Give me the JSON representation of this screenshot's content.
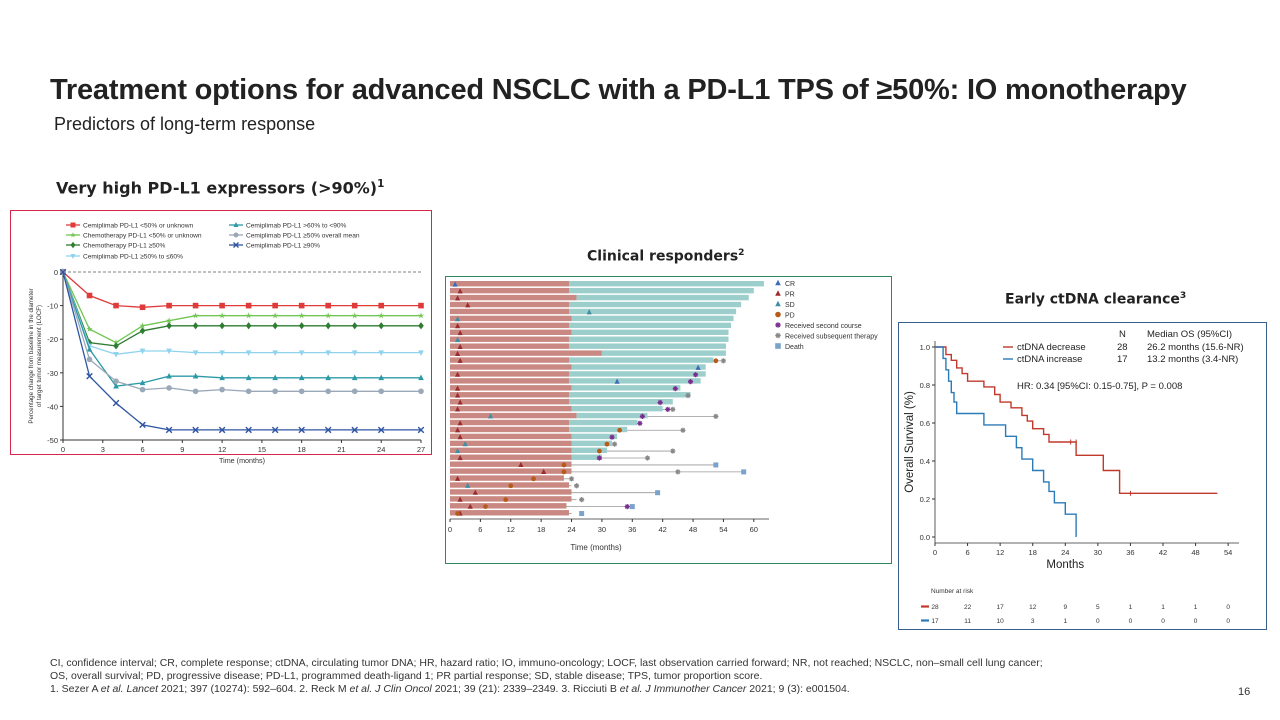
{
  "slide": {
    "title": "Treatment options for advanced NSCLC with a PD-L1 TPS of ≥50%: IO monotherapy",
    "subtitle": "Predictors of long-term response",
    "page_number": "16"
  },
  "sections": {
    "s1": {
      "label": "Very high PD-L1 expressors (>90%)",
      "ref": "1"
    },
    "s2": {
      "label": "Clinical responders",
      "ref": "2"
    },
    "s3": {
      "label": "Early ctDNA clearance",
      "ref": "3"
    }
  },
  "footnotes": {
    "line1": "CI, confidence interval; CR, complete response; ctDNA, circulating tumor DNA; HR, hazard ratio; IO, immuno-oncology; LOCF, last observation carried forward; NR, not reached; NSCLC, non–small cell lung cancer;",
    "line2": "OS, overall survival; PD, progressive disease; PD-L1, programmed death-ligand 1; PR partial response; SD, stable disease; TPS, tumor proportion score.",
    "ref1_pre": "1. Sezer A ",
    "ref1_it": "et al. Lancet",
    "ref1_post": " 2021; 397 (10274): 592–604. 2. Reck M ",
    "ref2_it": "et al. J Clin Oncol",
    "ref2_post": " 2021; 39 (21): 2339–2349. 3. Ricciuti B ",
    "ref3_it": "et al. J Immunother Cancer",
    "ref3_post": " 2021; 9 (3): e001504."
  },
  "chart_data": [
    {
      "type": "line",
      "title": "",
      "xlabel": "Time (months)",
      "ylabel": "Percentage change from baseline in the diameter of target tumor measurement (LOCF)",
      "xlim": [
        0,
        27
      ],
      "ylim": [
        -50,
        0
      ],
      "xticks": [
        0,
        3,
        6,
        9,
        12,
        15,
        18,
        21,
        24,
        27
      ],
      "yticks": [
        0,
        -10,
        -20,
        -30,
        -40,
        -50
      ],
      "x": [
        0,
        2,
        4,
        6,
        8,
        10,
        12,
        14,
        16,
        18,
        20,
        22,
        24,
        27
      ],
      "series": [
        {
          "name": "Cemiplimab PD-L1 <50% or unknown",
          "color": "#e03b3b",
          "marker": "square",
          "values": [
            0,
            -7,
            -10,
            -10.5,
            -10,
            -10,
            -10,
            -10,
            -10,
            -10,
            -10,
            -10,
            -10,
            -10
          ]
        },
        {
          "name": "Chemotherapy PD-L1 <50% or unknown",
          "color": "#73c655",
          "marker": "star",
          "values": [
            0,
            -17,
            -21,
            -16,
            -14.5,
            -13,
            -13,
            -13,
            -13,
            -13,
            -13,
            -13,
            -13,
            -13
          ]
        },
        {
          "name": "Chemotherapy PD-L1 ≥50%",
          "color": "#2e7d32",
          "marker": "diamond",
          "values": [
            0,
            -21,
            -22,
            -17.5,
            -16,
            -16,
            -16,
            -16,
            -16,
            -16,
            -16,
            -16,
            -16,
            -16
          ]
        },
        {
          "name": "Cemiplimab PD-L1 ≥50% to ≤60%",
          "color": "#8fd3ef",
          "marker": "tri-down",
          "values": [
            0,
            -22,
            -24.5,
            -23.5,
            -23.5,
            -24,
            -24,
            -24,
            -24,
            -24,
            -24,
            -24,
            -24,
            -24
          ]
        },
        {
          "name": "Cemiplimab PD-L1 >60% to <90%",
          "color": "#2c9aa6",
          "marker": "tri-up",
          "values": [
            0,
            -23,
            -34,
            -33,
            -31,
            -31,
            -31.5,
            -31.5,
            -31.5,
            -31.5,
            -31.5,
            -31.5,
            -31.5,
            -31.5
          ]
        },
        {
          "name": "Cemiplimab PD-L1 ≥50% overall mean",
          "color": "#9aa8b8",
          "marker": "circle",
          "values": [
            0,
            -26,
            -32.5,
            -35,
            -34.5,
            -35.5,
            -35,
            -35.5,
            -35.5,
            -35.5,
            -35.5,
            -35.5,
            -35.5,
            -35.5
          ]
        },
        {
          "name": "Cemiplimab PD-L1 ≥90%",
          "color": "#2f55a4",
          "marker": "x",
          "values": [
            0,
            -31,
            -39,
            -45.5,
            -47,
            -47,
            -47,
            -47,
            -47,
            -47,
            -47,
            -47,
            -47,
            -47
          ]
        }
      ]
    },
    {
      "type": "bar",
      "orientation": "horizontal",
      "title": "",
      "xlabel": "Time (months)",
      "xlim": [
        0,
        63
      ],
      "xticks": [
        0,
        6,
        12,
        18,
        24,
        30,
        36,
        42,
        48,
        54,
        60
      ],
      "legend": [
        "CR",
        "PR",
        "SD",
        "PD",
        "Received second course",
        "Received subsequent therapy",
        "Death"
      ],
      "colors": {
        "first_course": "#c98982",
        "second_course": "#9ccfcc",
        "CR": "#3b6db5",
        "PR": "#9b2d2d",
        "SD": "#3f8ea3",
        "PD": "#b85a1a",
        "second_course_marker": "#7b2d8e",
        "subsequent_therapy_marker": "#888888",
        "Death": "#7aa3cc"
      },
      "patients": [
        {
          "course1": 23.5,
          "end": 62,
          "resp": "CR",
          "resp_t": 1
        },
        {
          "course1": 23.5,
          "end": 60,
          "resp": "PR",
          "resp_t": 2
        },
        {
          "course1": 25,
          "end": 59,
          "resp": "PR",
          "resp_t": 1.5
        },
        {
          "course1": 23.5,
          "end": 57.5,
          "resp": "PR",
          "resp_t": 3.5
        },
        {
          "course1": 23.5,
          "end": 56.5,
          "resp": "SD",
          "resp_t": 27.5
        },
        {
          "course1": 24,
          "end": 56,
          "resp": "SD",
          "resp_t": 1.5
        },
        {
          "course1": 23.5,
          "end": 55.5,
          "resp": "PR",
          "resp_t": 1.5
        },
        {
          "course1": 24,
          "end": 55,
          "resp": "PR",
          "resp_t": 2
        },
        {
          "course1": 23.5,
          "end": 55,
          "resp": "SD",
          "resp_t": 1.5
        },
        {
          "course1": 23.5,
          "end": 54.5,
          "resp": "PR",
          "resp_t": 2
        },
        {
          "course1": 30,
          "end": 54.5,
          "resp": "PR",
          "resp_t": 1.5
        },
        {
          "course1": 23.5,
          "end": 52,
          "resp": "PR",
          "resp_t": 2,
          "pd": 52.5,
          "subseq": 54
        },
        {
          "course1": 24,
          "end": 50.5,
          "resp": "CR",
          "resp_t": 49
        },
        {
          "course1": 23.5,
          "end": 50.5,
          "resp": "PR",
          "resp_t": 1.5,
          "second": 48.5
        },
        {
          "course1": 23.5,
          "end": 49.5,
          "resp": "CR",
          "resp_t": 33,
          "second": 47.5
        },
        {
          "course1": 24,
          "end": 45.5,
          "resp": "PR",
          "resp_t": 1.5,
          "second": 44.5
        },
        {
          "course1": 23.5,
          "end": 47.5,
          "resp": "PR",
          "resp_t": 1.5,
          "subseq": 47
        },
        {
          "course1": 23.5,
          "end": 44,
          "resp": "PR",
          "resp_t": 2,
          "second": 41.5
        },
        {
          "course1": 24,
          "end": 42,
          "resp": "PR",
          "resp_t": 1.5,
          "second": 43,
          "subseq": 44
        },
        {
          "course1": 25,
          "end": 39,
          "resp": "SD",
          "resp_t": 8,
          "second": 38,
          "subseq": 52.5
        },
        {
          "course1": 23.5,
          "end": 37,
          "resp": "PR",
          "resp_t": 2,
          "second": 37.5
        },
        {
          "course1": 23.5,
          "end": 35,
          "resp": "PR",
          "resp_t": 1.5,
          "pd": 33.5,
          "subseq": 46
        },
        {
          "course1": 24,
          "end": 33,
          "resp": "PR",
          "resp_t": 2,
          "second": 32
        },
        {
          "course1": 24,
          "end": 32,
          "resp": "SD",
          "resp_t": 3,
          "pd": 31,
          "subseq": 32.5
        },
        {
          "course1": 24,
          "end": 31,
          "resp": "SD",
          "resp_t": 1.5,
          "pd": 29.5,
          "subseq": 44
        },
        {
          "course1": 24,
          "end": 30,
          "resp": "PR",
          "resp_t": 2,
          "second": 29.5,
          "subseq": 39
        },
        {
          "course1": 24,
          "end": 52.5,
          "resp": "PR",
          "resp_t": 14,
          "pd": 22.5,
          "death": 52.5
        },
        {
          "course1": 24,
          "end": 58,
          "resp": "PR",
          "resp_t": 18.5,
          "pd": 22.5,
          "subseq": 45,
          "death": 58
        },
        {
          "course1": 22.5,
          "end": 24,
          "resp": "PR",
          "resp_t": 1.5,
          "pd": 16.5,
          "subseq": 24
        },
        {
          "course1": 23.5,
          "end": 24,
          "resp": "SD",
          "resp_t": 3.5,
          "pd": 12,
          "subseq": 25
        },
        {
          "course1": 24,
          "end": 41,
          "resp": "PR",
          "resp_t": 5,
          "death": 41
        },
        {
          "course1": 24,
          "end": 25,
          "resp": "PR",
          "resp_t": 2,
          "pd": 11,
          "subseq": 26
        },
        {
          "course1": 23,
          "end": 36,
          "resp": "PR",
          "resp_t": 4,
          "pd": 7,
          "second": 35,
          "death": 36
        },
        {
          "course1": 23.5,
          "end": 24,
          "resp": "PR",
          "resp_t": 2,
          "pd": 1.5,
          "death": 26
        }
      ]
    },
    {
      "type": "line",
      "subtype": "kaplan-meier",
      "title": "",
      "xlabel": "Months",
      "ylabel": "Overall Survival (%)",
      "xlim": [
        0,
        56
      ],
      "ylim": [
        0,
        1.0
      ],
      "xticks": [
        0,
        6,
        12,
        18,
        24,
        30,
        36,
        42,
        48,
        54
      ],
      "yticks": [
        0.0,
        0.2,
        0.4,
        0.6,
        0.8,
        1.0
      ],
      "legend_header": [
        "N",
        "Median OS (95%CI)"
      ],
      "hr_text": "HR: 0.34 [95%CI: 0.15-0.75], P = 0.008",
      "series": [
        {
          "name": "ctDNA decrease",
          "color": "#c0392b",
          "n": "28",
          "median": "26.2 months (15.6-NR)",
          "steps": [
            [
              0,
              1.0
            ],
            [
              2,
              0.96
            ],
            [
              3,
              0.93
            ],
            [
              4,
              0.89
            ],
            [
              5,
              0.86
            ],
            [
              6,
              0.82
            ],
            [
              9,
              0.79
            ],
            [
              11,
              0.75
            ],
            [
              12,
              0.71
            ],
            [
              14,
              0.68
            ],
            [
              16,
              0.64
            ],
            [
              17,
              0.61
            ],
            [
              18,
              0.57
            ],
            [
              20,
              0.54
            ],
            [
              21,
              0.5
            ],
            [
              26,
              0.43
            ],
            [
              31,
              0.35
            ],
            [
              34,
              0.23
            ],
            [
              52,
              0.23
            ]
          ],
          "censor": [
            [
              25,
              0.5
            ],
            [
              26,
              0.5
            ],
            [
              36,
              0.23
            ]
          ],
          "at_risk": [
            "28",
            "22",
            "17",
            "12",
            "9",
            "5",
            "1",
            "1",
            "1",
            "0"
          ]
        },
        {
          "name": "ctDNA increase",
          "color": "#2b7bb9",
          "n": "17",
          "median": "13.2 months (3.4-NR)",
          "steps": [
            [
              0,
              1.0
            ],
            [
              1.5,
              0.94
            ],
            [
              2,
              0.88
            ],
            [
              2.5,
              0.82
            ],
            [
              3,
              0.76
            ],
            [
              3.5,
              0.71
            ],
            [
              4,
              0.65
            ],
            [
              9,
              0.59
            ],
            [
              13,
              0.53
            ],
            [
              15,
              0.47
            ],
            [
              16,
              0.41
            ],
            [
              18,
              0.35
            ],
            [
              20,
              0.29
            ],
            [
              21,
              0.24
            ],
            [
              22,
              0.18
            ],
            [
              24,
              0.12
            ],
            [
              26,
              0.06
            ],
            [
              26,
              0
            ]
          ],
          "censor": [],
          "at_risk": [
            "17",
            "11",
            "10",
            "3",
            "1",
            "0",
            "0",
            "0",
            "0",
            "0"
          ]
        }
      ],
      "at_risk_label": "Number at risk"
    }
  ]
}
